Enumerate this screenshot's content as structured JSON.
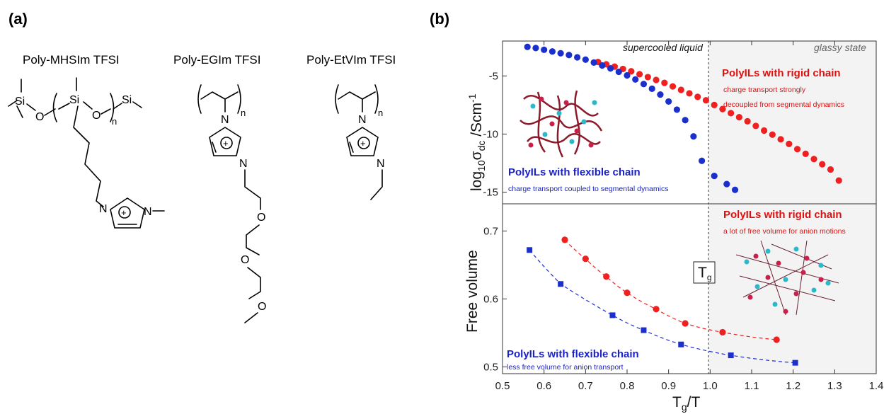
{
  "panels": {
    "a_label": "(a)",
    "b_label": "(b)"
  },
  "structures": [
    {
      "name": "Poly-MHSIm TFSI"
    },
    {
      "name": "Poly-EGIm TFSI"
    },
    {
      "name": "Poly-EtVIm TFSI"
    }
  ],
  "atoms": {
    "si": "Si",
    "o": "O",
    "n": "N",
    "sub_n": "n",
    "plus": "+"
  },
  "colors": {
    "red": "#e01010",
    "blue": "#1a22c8",
    "red_marker": "#f02020",
    "blue_marker": "#1a2fcc",
    "chain": "#8b1a2a",
    "cyan": "#2bb8c8",
    "magenta": "#c8204a",
    "glassy_bg": "#f3f3f3"
  },
  "chart_data": [
    {
      "type": "scatter",
      "xlim": [
        0.5,
        1.4
      ],
      "ylim": [
        -16,
        -2
      ],
      "ylabel": "log10σdc /Scm-1",
      "yticks": [
        -15,
        -10,
        -5
      ],
      "regions": {
        "left": "supercooled liquid",
        "right": "glassy state",
        "boundary_x": 1.0
      },
      "series": [
        {
          "name": "PolyILs with rigid chain",
          "color": "red",
          "x": [
            0.73,
            0.75,
            0.77,
            0.79,
            0.81,
            0.83,
            0.85,
            0.87,
            0.89,
            0.91,
            0.93,
            0.95,
            0.97,
            0.99,
            1.01,
            1.03,
            1.05,
            1.07,
            1.09,
            1.11,
            1.13,
            1.15,
            1.17,
            1.19,
            1.21,
            1.23,
            1.25,
            1.27,
            1.29,
            1.31
          ],
          "y": [
            -3.8,
            -4.0,
            -4.2,
            -4.4,
            -4.6,
            -4.85,
            -5.1,
            -5.35,
            -5.6,
            -5.9,
            -6.2,
            -6.5,
            -6.8,
            -7.1,
            -7.5,
            -7.85,
            -8.2,
            -8.55,
            -8.9,
            -9.3,
            -9.7,
            -10.05,
            -10.45,
            -10.85,
            -11.3,
            -11.7,
            -12.15,
            -12.6,
            -13.05,
            -14.0
          ]
        },
        {
          "name": "PolyILs with flexible chain",
          "color": "blue",
          "x": [
            0.56,
            0.58,
            0.6,
            0.62,
            0.64,
            0.66,
            0.68,
            0.7,
            0.72,
            0.74,
            0.76,
            0.78,
            0.8,
            0.82,
            0.84,
            0.86,
            0.88,
            0.9,
            0.92,
            0.94,
            0.96,
            0.98,
            1.01,
            1.04,
            1.06
          ],
          "y": [
            -2.5,
            -2.6,
            -2.75,
            -2.9,
            -3.05,
            -3.2,
            -3.4,
            -3.6,
            -3.85,
            -4.1,
            -4.35,
            -4.65,
            -4.95,
            -5.3,
            -5.7,
            -6.1,
            -6.6,
            -7.2,
            -7.9,
            -8.8,
            -10.2,
            -12.3,
            -13.6,
            -14.3,
            -14.8
          ]
        }
      ],
      "annotations": {
        "rigid_head": "PolyILs with rigid chain",
        "rigid_sub1": "charge transport strongly",
        "rigid_sub2": "decoupled from segmental dynamics",
        "flex_head": "PolyILs with flexible chain",
        "flex_sub": "charge transport coupled to segmental dynamics"
      }
    },
    {
      "type": "scatter",
      "xlim": [
        0.5,
        1.4
      ],
      "ylim": [
        0.49,
        0.74
      ],
      "xlabel": "Tg/T",
      "ylabel": "Free volume",
      "xticks": [
        0.5,
        0.6,
        0.7,
        0.8,
        0.9,
        1.0,
        1.1,
        1.2,
        1.3,
        1.4
      ],
      "yticks": [
        0.5,
        0.6,
        0.7
      ],
      "tg_label": "Tg",
      "series": [
        {
          "name": "PolyILs with rigid chain",
          "color": "red",
          "marker": "circle",
          "x": [
            0.65,
            0.7,
            0.75,
            0.8,
            0.87,
            0.94,
            1.03,
            1.16
          ],
          "y": [
            0.687,
            0.659,
            0.633,
            0.609,
            0.585,
            0.564,
            0.551,
            0.54
          ]
        },
        {
          "name": "PolyILs with flexible chain",
          "color": "blue",
          "marker": "square",
          "x": [
            0.565,
            0.64,
            0.765,
            0.84,
            0.93,
            1.05,
            1.205
          ],
          "y": [
            0.672,
            0.622,
            0.576,
            0.554,
            0.533,
            0.517,
            0.506
          ]
        }
      ],
      "annotations": {
        "rigid_head": "PolyILs with rigid chain",
        "rigid_sub": "a lot of free volume for anion motions",
        "flex_head": "PolyILs with flexible chain",
        "flex_sub": "less free volume for anion transport"
      }
    }
  ]
}
